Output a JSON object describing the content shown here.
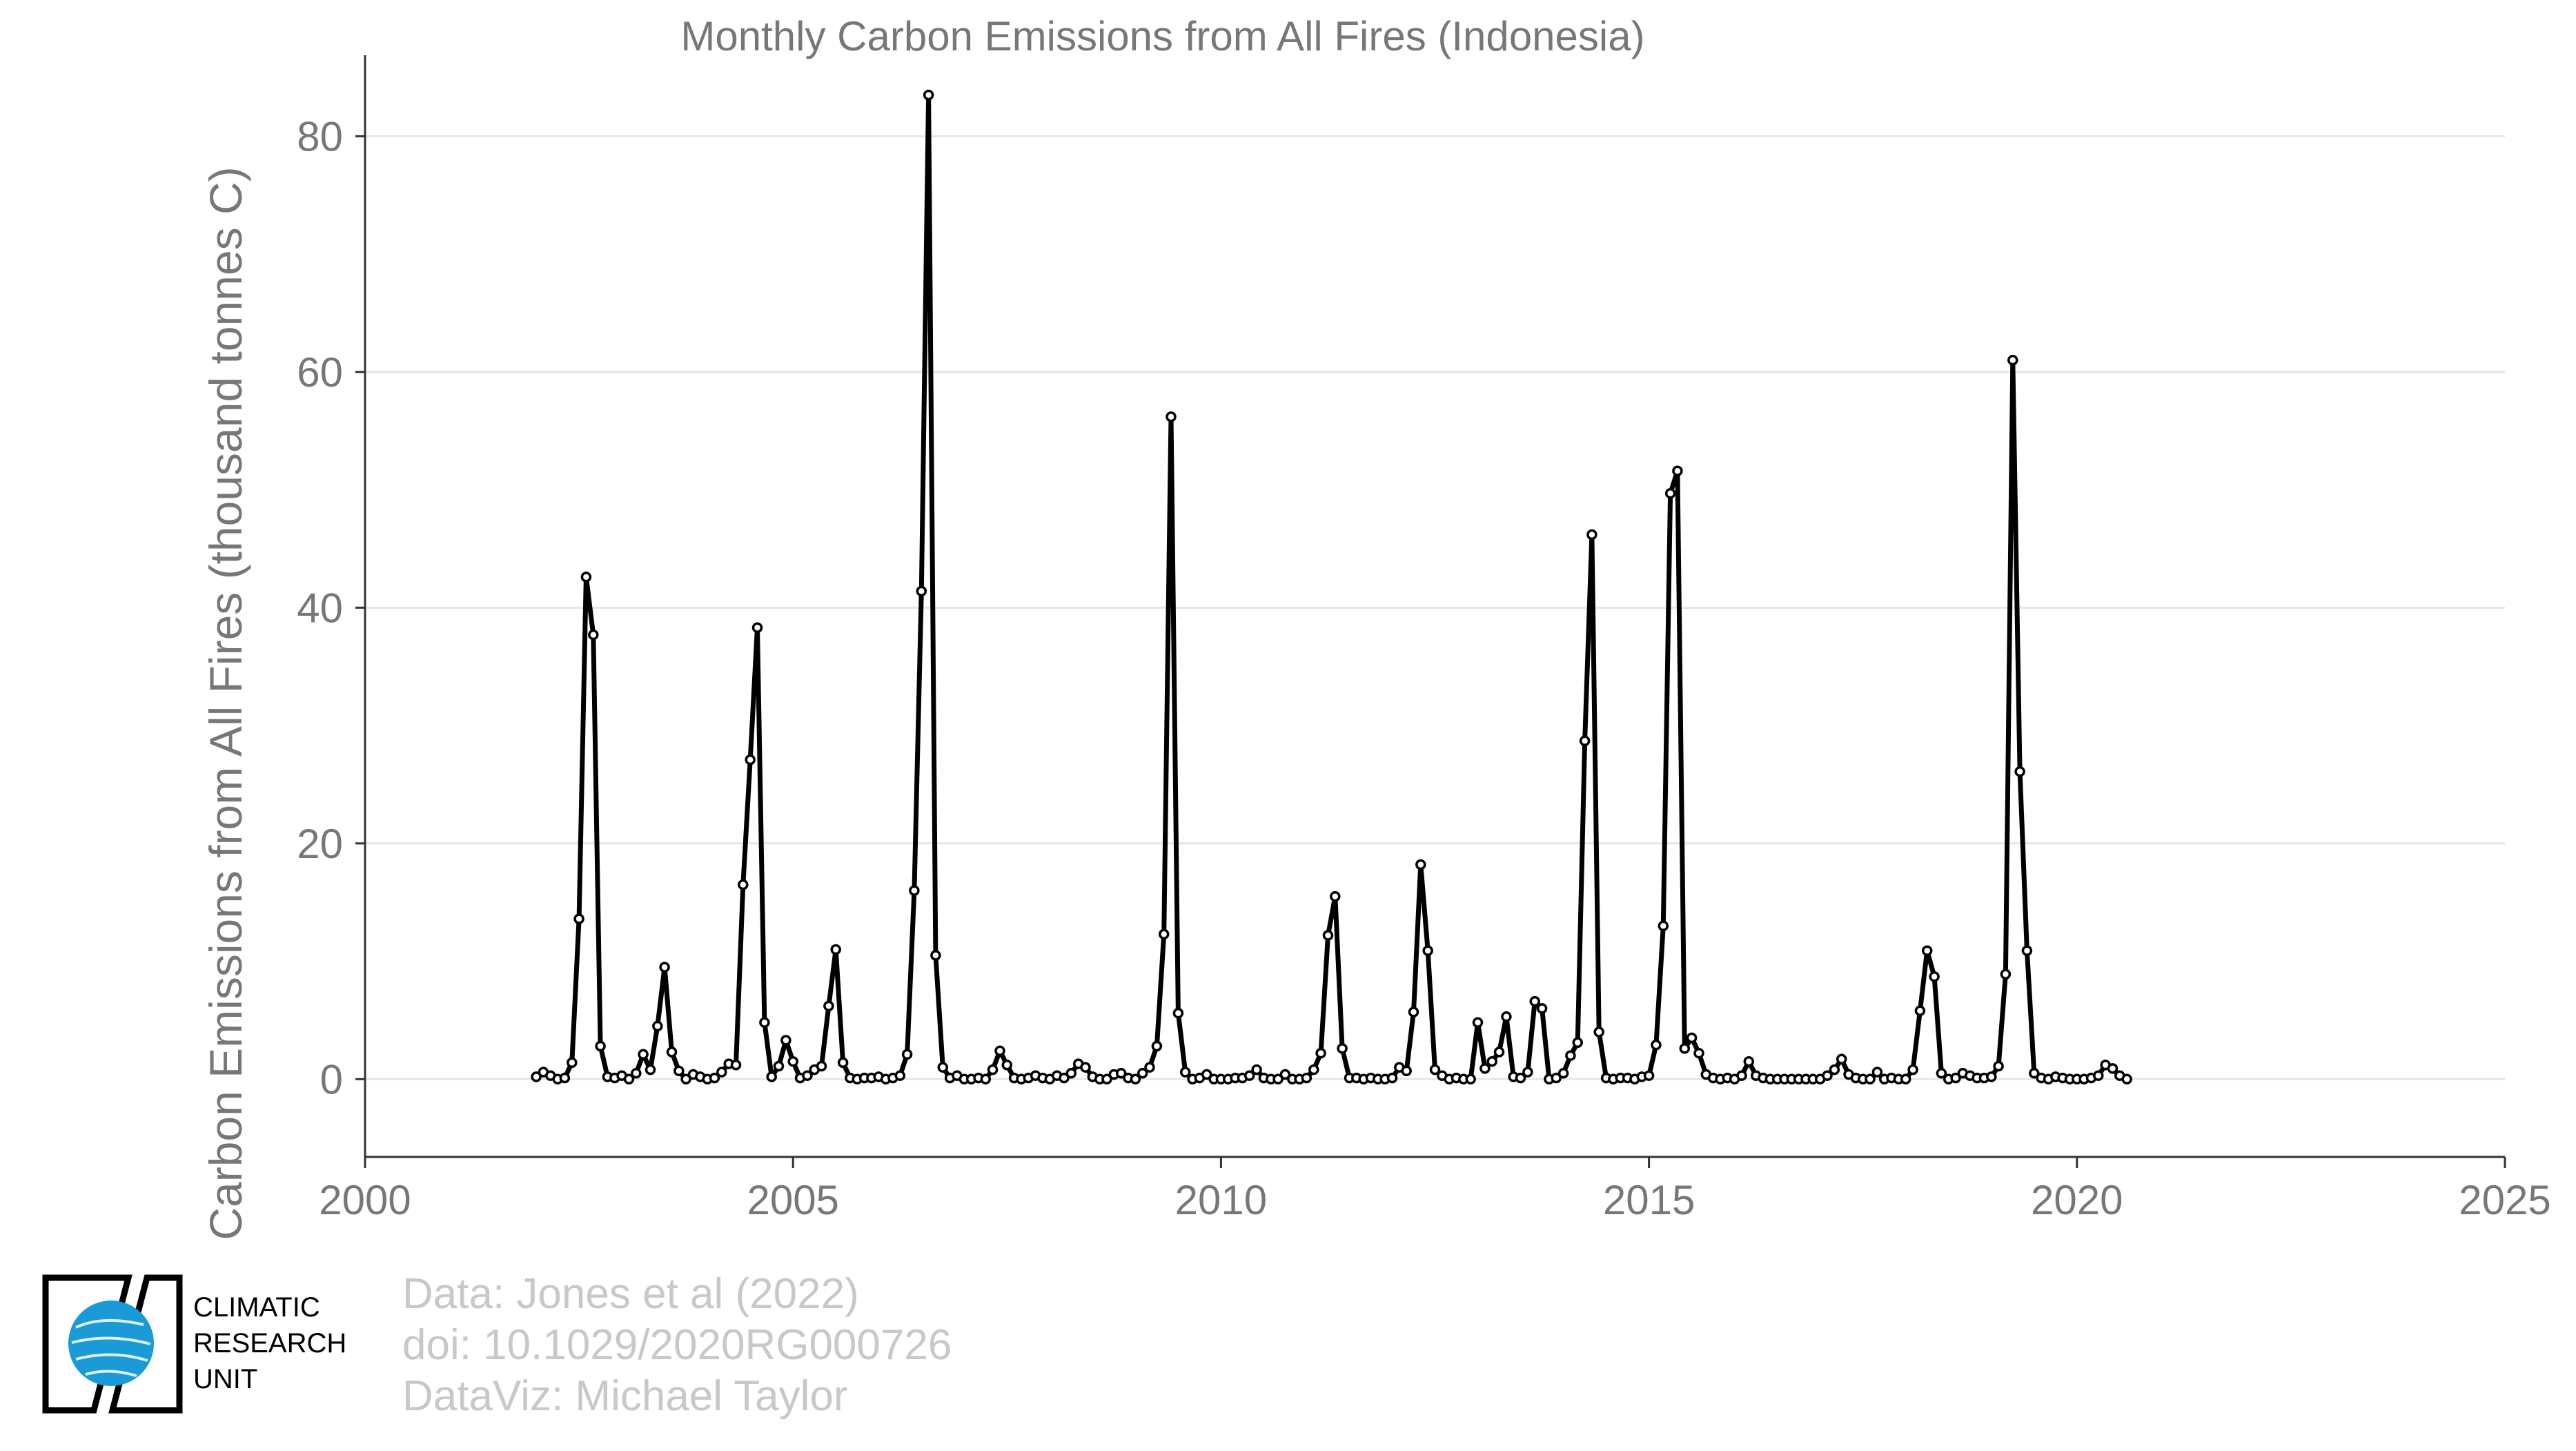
{
  "chart_data": {
    "type": "line",
    "title": "Monthly Carbon Emissions from All Fires (Indonesia)",
    "xlabel": "",
    "ylabel": "Carbon Emissions from All Fires (thousand tonnes C)",
    "xlim": [
      2000,
      2025
    ],
    "ylim": [
      -6.6,
      85.7
    ],
    "x_ticks": [
      2000,
      2005,
      2010,
      2015,
      2020,
      2025
    ],
    "y_ticks": [
      0,
      20,
      40,
      60,
      80
    ],
    "grid": "horizontal",
    "legend": "none",
    "line_color": "#000000",
    "marker": "open-circle",
    "series": [
      {
        "start_year": 2002,
        "start_month": 1,
        "values": [
          0.2,
          0.6,
          0.3,
          0.0,
          0.1,
          1.4,
          13.6,
          42.6,
          37.7,
          2.8,
          0.2,
          0.1,
          0.3,
          0.0,
          0.5,
          2.1,
          0.8,
          4.5,
          9.5,
          2.3,
          0.7,
          0.0,
          0.4,
          0.2,
          0.0,
          0.1,
          0.6,
          1.3,
          1.2,
          16.5,
          27.1,
          38.3,
          4.8,
          0.2,
          1.1,
          3.3,
          1.5,
          0.1,
          0.3,
          0.8,
          1.1,
          6.2,
          11.0,
          1.4,
          0.1,
          0.0,
          0.1,
          0.1,
          0.2,
          0.0,
          0.1,
          0.3,
          2.1,
          16.0,
          41.4,
          83.5,
          10.5,
          1.0,
          0.1,
          0.3,
          0.0,
          0.0,
          0.1,
          0.0,
          0.8,
          2.4,
          1.2,
          0.1,
          0.0,
          0.1,
          0.3,
          0.1,
          0.0,
          0.3,
          0.1,
          0.5,
          1.3,
          1.0,
          0.2,
          0.0,
          0.0,
          0.4,
          0.5,
          0.1,
          0.0,
          0.5,
          1.0,
          2.8,
          12.3,
          56.2,
          5.6,
          0.6,
          0.0,
          0.1,
          0.4,
          0.0,
          0.0,
          0.0,
          0.1,
          0.1,
          0.3,
          0.8,
          0.1,
          0.0,
          0.0,
          0.4,
          0.0,
          0.0,
          0.1,
          0.8,
          2.2,
          12.2,
          15.5,
          2.6,
          0.1,
          0.1,
          0.0,
          0.1,
          0.0,
          0.0,
          0.1,
          1.0,
          0.7,
          5.7,
          18.2,
          10.9,
          0.8,
          0.3,
          0.0,
          0.1,
          0.0,
          0.0,
          4.8,
          0.9,
          1.5,
          2.3,
          5.3,
          0.2,
          0.1,
          0.6,
          6.6,
          6.0,
          0.0,
          0.1,
          0.5,
          2.0,
          3.1,
          28.7,
          46.2,
          4.0,
          0.1,
          0.0,
          0.1,
          0.1,
          0.0,
          0.2,
          0.3,
          2.9,
          13.0,
          49.7,
          51.6,
          2.6,
          3.5,
          2.2,
          0.4,
          0.1,
          0.0,
          0.1,
          0.0,
          0.3,
          1.5,
          0.3,
          0.1,
          0.0,
          0.0,
          0.0,
          0.0,
          0.0,
          0.0,
          0.0,
          0.0,
          0.3,
          0.8,
          1.7,
          0.4,
          0.1,
          0.0,
          0.0,
          0.6,
          0.0,
          0.1,
          0.0,
          0.0,
          0.8,
          5.8,
          10.9,
          8.7,
          0.5,
          0.0,
          0.1,
          0.5,
          0.3,
          0.1,
          0.1,
          0.2,
          1.1,
          8.9,
          61.0,
          26.1,
          10.9,
          0.5,
          0.1,
          0.0,
          0.2,
          0.1,
          0.0,
          0.0,
          0.0,
          0.1,
          0.3,
          1.2,
          0.9,
          0.3,
          0.0
        ]
      }
    ]
  },
  "footer": {
    "data_source": "Data: Jones et al (2022)",
    "doi": "doi: 10.1029/2020RG000726",
    "dataviz": "DataViz: Michael Taylor"
  },
  "logo": {
    "line1": "CLIMATIC",
    "line2": "RESEARCH",
    "line3": "UNIT",
    "globe_color": "#1a9ad6"
  }
}
